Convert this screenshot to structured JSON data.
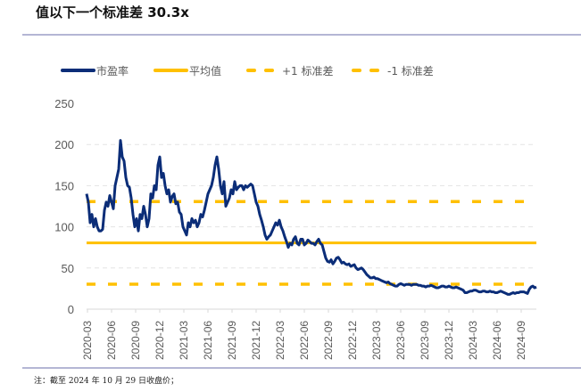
{
  "title": "值以下一个标准差 30.3x",
  "note": "注：截至 2024 年 10 月 29 日收盘价；",
  "colors": {
    "pe": "#0b2d78",
    "mean": "#ffc000",
    "axis": "#d9d9d9",
    "text": "#595959"
  },
  "chart_data": {
    "type": "line",
    "title": "",
    "xlabel": "",
    "ylabel": "",
    "ylim": [
      0,
      250
    ],
    "yticks": [
      "0",
      "50",
      "100",
      "150",
      "200",
      "250"
    ],
    "xticks": [
      "2020-03",
      "2020-06",
      "2020-09",
      "2020-12",
      "2021-03",
      "2021-06",
      "2021-09",
      "2021-12",
      "2022-03",
      "2022-06",
      "2022-09",
      "2022-12",
      "2023-03",
      "2023-06",
      "2023-09",
      "2023-12",
      "2024-03",
      "2024-06",
      "2024-09"
    ],
    "x_range": [
      "2020-03",
      "2024-10-29"
    ],
    "legend": [
      "市盈率",
      "平均值",
      "+1 标准差",
      "-1 标准差"
    ],
    "legend_position": "top",
    "grid": true,
    "series": [
      {
        "name": "市盈率",
        "values": [
          140,
          130,
          105,
          115,
          100,
          110,
          100,
          95,
          95,
          97,
          120,
          130,
          125,
          138,
          130,
          122,
          150,
          160,
          170,
          205,
          185,
          180,
          160,
          150,
          148,
          135,
          115,
          100,
          110,
          95,
          115,
          110,
          125,
          115,
          100,
          110,
          140,
          135,
          150,
          145,
          175,
          185,
          160,
          165,
          150,
          140,
          145,
          130,
          137,
          140,
          128,
          130,
          118,
          115,
          100,
          95,
          90,
          105,
          100,
          110,
          105,
          108,
          100,
          105,
          115,
          112,
          120,
          130,
          140,
          145,
          150,
          160,
          175,
          185,
          170,
          150,
          140,
          155,
          125,
          130,
          135,
          145,
          140,
          155,
          145,
          148,
          150,
          150,
          145,
          150,
          148,
          150,
          152,
          150,
          140,
          130,
          125,
          115,
          108,
          100,
          90,
          85,
          88,
          90,
          95,
          100,
          105,
          102,
          108,
          100,
          95,
          88,
          82,
          75,
          80,
          78,
          85,
          88,
          80,
          78,
          85,
          85,
          78,
          80,
          84,
          82,
          80,
          80,
          78,
          82,
          85,
          80,
          78,
          70,
          62,
          58,
          57,
          60,
          55,
          58,
          62,
          63,
          60,
          56,
          57,
          55,
          54,
          55,
          52,
          53,
          54,
          50,
          48,
          49,
          50,
          48,
          45,
          42,
          40,
          38,
          38,
          39,
          37,
          37,
          36,
          35,
          34,
          33,
          32,
          33,
          31,
          30,
          29,
          28,
          28,
          30,
          31,
          30,
          29,
          30,
          30,
          30,
          29,
          30,
          30,
          30,
          29,
          29,
          28,
          28,
          27,
          28,
          28,
          29,
          28,
          27,
          26,
          26,
          27,
          28,
          28,
          27,
          27,
          28,
          27,
          26,
          26,
          27,
          26,
          25,
          24,
          23,
          20,
          20,
          21,
          22,
          22,
          23,
          23,
          22,
          21,
          21,
          22,
          22,
          21,
          21,
          22,
          21,
          21,
          20,
          20,
          21,
          22,
          21,
          20,
          19,
          18,
          18,
          19,
          20,
          19,
          20,
          20,
          21,
          21,
          21,
          20,
          19,
          24,
          27,
          28,
          26,
          27
        ]
      },
      {
        "name": "平均值",
        "value": 80.5
      },
      {
        "name": "+1 标准差",
        "value": 130.7
      },
      {
        "name": "-1 标准差",
        "value": 30.3
      }
    ]
  }
}
